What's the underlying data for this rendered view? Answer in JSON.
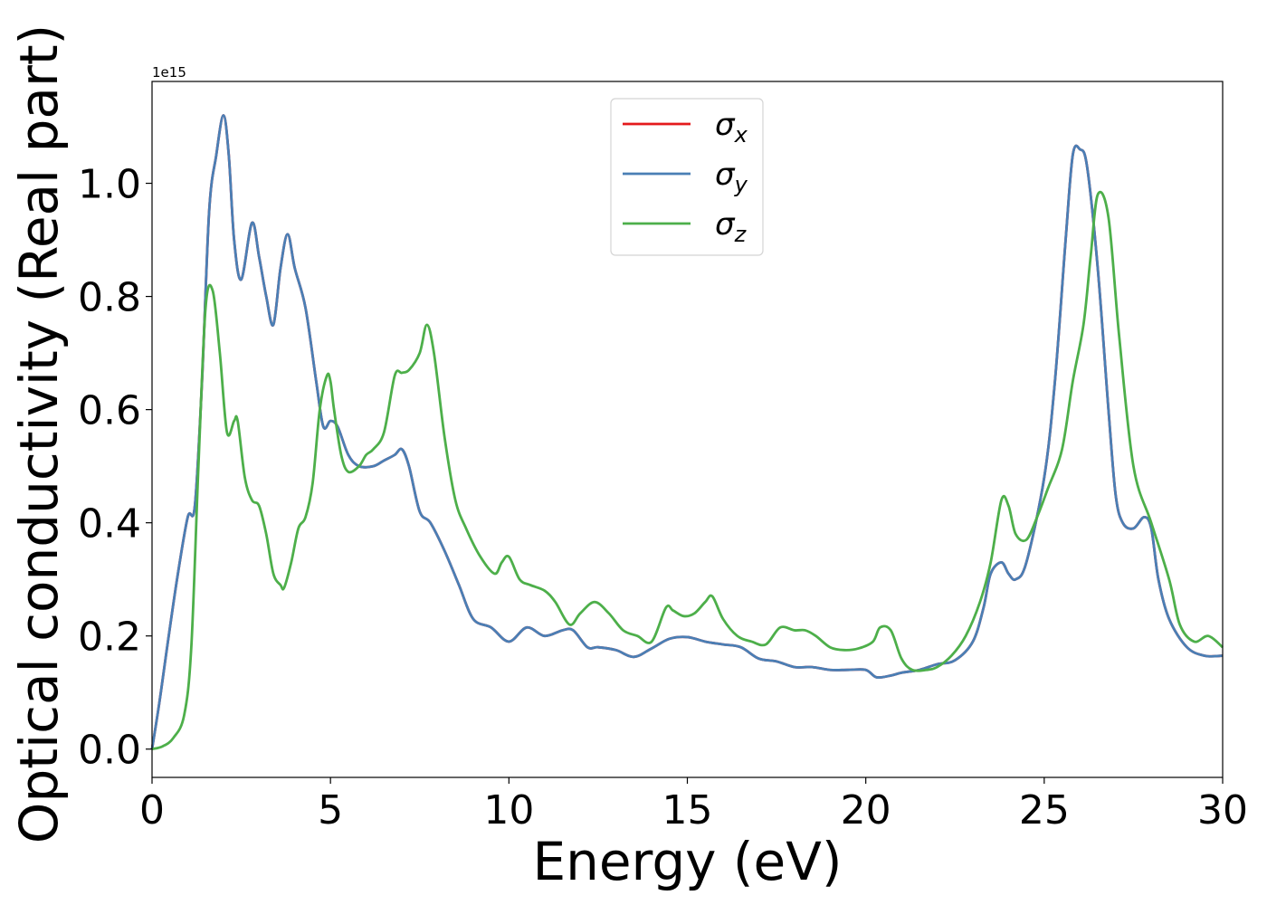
{
  "chart_data": {
    "type": "line",
    "title": "",
    "xlabel": "Energy (eV)",
    "ylabel": "Optical conductivity (Real part)",
    "y_offset_label": "1e15",
    "xlim": [
      0,
      30
    ],
    "ylim": [
      -0.05,
      1.18
    ],
    "xticks": [
      0,
      5,
      10,
      15,
      20,
      25,
      30
    ],
    "xtick_labels": [
      "0",
      "5",
      "10",
      "15",
      "20",
      "25",
      "30"
    ],
    "yticks": [
      0.0,
      0.2,
      0.4,
      0.6,
      0.8,
      1.0
    ],
    "ytick_labels": [
      "0.0",
      "0.2",
      "0.4",
      "0.6",
      "0.8",
      "1.0"
    ],
    "grid": false,
    "legend_position": "top-center",
    "series": [
      {
        "name": "σ_x",
        "legend_base": "σ",
        "legend_sub": "x",
        "color": "#e41a1c",
        "x": [
          0,
          0.2,
          0.4,
          0.7,
          1.0,
          1.2,
          1.4,
          1.6,
          1.8,
          2.0,
          2.15,
          2.3,
          2.5,
          2.8,
          3.0,
          3.2,
          3.4,
          3.6,
          3.8,
          4.0,
          4.3,
          4.6,
          4.8,
          5.0,
          5.2,
          5.5,
          5.8,
          6.2,
          6.5,
          6.8,
          7.0,
          7.2,
          7.5,
          7.8,
          8.2,
          8.6,
          9.0,
          9.5,
          10.0,
          10.5,
          11.0,
          11.5,
          11.8,
          12.2,
          12.5,
          13.0,
          13.5,
          14.0,
          14.5,
          15.0,
          15.5,
          16.0,
          16.5,
          17.0,
          17.5,
          18.0,
          18.5,
          19.0,
          19.5,
          20.0,
          20.3,
          20.7,
          21.0,
          21.5,
          22.0,
          22.5,
          23.0,
          23.3,
          23.5,
          23.8,
          24.0,
          24.2,
          24.5,
          25.0,
          25.3,
          25.6,
          25.8,
          26.0,
          26.2,
          26.5,
          26.8,
          27.0,
          27.2,
          27.5,
          27.8,
          28.0,
          28.2,
          28.5,
          29.0,
          29.5,
          30.0
        ],
        "values": [
          0.0,
          0.08,
          0.17,
          0.3,
          0.41,
          0.43,
          0.65,
          0.95,
          1.05,
          1.12,
          1.05,
          0.9,
          0.83,
          0.93,
          0.87,
          0.8,
          0.75,
          0.85,
          0.91,
          0.85,
          0.78,
          0.65,
          0.57,
          0.58,
          0.57,
          0.52,
          0.5,
          0.5,
          0.51,
          0.52,
          0.53,
          0.5,
          0.42,
          0.4,
          0.35,
          0.29,
          0.23,
          0.215,
          0.19,
          0.215,
          0.2,
          0.21,
          0.21,
          0.18,
          0.18,
          0.175,
          0.163,
          0.178,
          0.195,
          0.198,
          0.19,
          0.185,
          0.18,
          0.16,
          0.155,
          0.145,
          0.145,
          0.14,
          0.14,
          0.14,
          0.127,
          0.13,
          0.135,
          0.14,
          0.15,
          0.157,
          0.19,
          0.25,
          0.31,
          0.33,
          0.31,
          0.3,
          0.33,
          0.48,
          0.65,
          0.9,
          1.05,
          1.06,
          1.03,
          0.85,
          0.6,
          0.45,
          0.4,
          0.39,
          0.41,
          0.39,
          0.3,
          0.23,
          0.18,
          0.165,
          0.165
        ]
      },
      {
        "name": "σ_y",
        "legend_base": "σ",
        "legend_sub": "y",
        "color": "#4a7fb5",
        "x": [
          0,
          0.2,
          0.4,
          0.7,
          1.0,
          1.2,
          1.4,
          1.6,
          1.8,
          2.0,
          2.15,
          2.3,
          2.5,
          2.8,
          3.0,
          3.2,
          3.4,
          3.6,
          3.8,
          4.0,
          4.3,
          4.6,
          4.8,
          5.0,
          5.2,
          5.5,
          5.8,
          6.2,
          6.5,
          6.8,
          7.0,
          7.2,
          7.5,
          7.8,
          8.2,
          8.6,
          9.0,
          9.5,
          10.0,
          10.5,
          11.0,
          11.5,
          11.8,
          12.2,
          12.5,
          13.0,
          13.5,
          14.0,
          14.5,
          15.0,
          15.5,
          16.0,
          16.5,
          17.0,
          17.5,
          18.0,
          18.5,
          19.0,
          19.5,
          20.0,
          20.3,
          20.7,
          21.0,
          21.5,
          22.0,
          22.5,
          23.0,
          23.3,
          23.5,
          23.8,
          24.0,
          24.2,
          24.5,
          25.0,
          25.3,
          25.6,
          25.8,
          26.0,
          26.2,
          26.5,
          26.8,
          27.0,
          27.2,
          27.5,
          27.8,
          28.0,
          28.2,
          28.5,
          29.0,
          29.5,
          30.0
        ],
        "values": [
          0.0,
          0.08,
          0.17,
          0.3,
          0.41,
          0.43,
          0.65,
          0.95,
          1.05,
          1.12,
          1.05,
          0.9,
          0.83,
          0.93,
          0.87,
          0.8,
          0.75,
          0.85,
          0.91,
          0.85,
          0.78,
          0.65,
          0.57,
          0.58,
          0.57,
          0.52,
          0.5,
          0.5,
          0.51,
          0.52,
          0.53,
          0.5,
          0.42,
          0.4,
          0.35,
          0.29,
          0.23,
          0.215,
          0.19,
          0.215,
          0.2,
          0.21,
          0.21,
          0.18,
          0.18,
          0.175,
          0.163,
          0.178,
          0.195,
          0.198,
          0.19,
          0.185,
          0.18,
          0.16,
          0.155,
          0.145,
          0.145,
          0.14,
          0.14,
          0.14,
          0.127,
          0.13,
          0.135,
          0.14,
          0.15,
          0.157,
          0.19,
          0.25,
          0.31,
          0.33,
          0.31,
          0.3,
          0.33,
          0.48,
          0.65,
          0.9,
          1.05,
          1.06,
          1.03,
          0.85,
          0.6,
          0.45,
          0.4,
          0.39,
          0.41,
          0.39,
          0.3,
          0.23,
          0.18,
          0.165,
          0.165
        ]
      },
      {
        "name": "σ_z",
        "legend_base": "σ",
        "legend_sub": "z",
        "color": "#4daf4a",
        "x": [
          0,
          0.3,
          0.6,
          0.9,
          1.1,
          1.3,
          1.5,
          1.7,
          1.9,
          2.1,
          2.3,
          2.4,
          2.6,
          2.8,
          3.0,
          3.2,
          3.4,
          3.6,
          3.7,
          3.9,
          4.1,
          4.3,
          4.5,
          4.7,
          4.9,
          5.0,
          5.1,
          5.3,
          5.5,
          5.8,
          6.0,
          6.2,
          6.5,
          6.8,
          7.0,
          7.2,
          7.5,
          7.7,
          7.9,
          8.2,
          8.5,
          8.8,
          9.2,
          9.6,
          9.8,
          10.0,
          10.3,
          10.6,
          11.0,
          11.3,
          11.7,
          12.0,
          12.4,
          12.8,
          13.2,
          13.6,
          14.0,
          14.4,
          14.6,
          14.9,
          15.2,
          15.5,
          15.7,
          16.0,
          16.4,
          16.8,
          17.2,
          17.6,
          18.0,
          18.3,
          18.6,
          19.0,
          19.4,
          19.8,
          20.2,
          20.4,
          20.7,
          21.0,
          21.3,
          21.7,
          22.0,
          22.4,
          22.8,
          23.2,
          23.5,
          23.8,
          24.0,
          24.2,
          24.5,
          24.8,
          25.1,
          25.5,
          25.8,
          26.1,
          26.3,
          26.5,
          26.8,
          27.1,
          27.5,
          28.0,
          28.5,
          28.8,
          29.2,
          29.6,
          30.0
        ],
        "values": [
          0.0,
          0.005,
          0.02,
          0.06,
          0.18,
          0.5,
          0.78,
          0.81,
          0.7,
          0.56,
          0.58,
          0.58,
          0.48,
          0.44,
          0.43,
          0.38,
          0.31,
          0.29,
          0.285,
          0.33,
          0.39,
          0.41,
          0.47,
          0.6,
          0.66,
          0.65,
          0.6,
          0.52,
          0.49,
          0.5,
          0.52,
          0.53,
          0.56,
          0.66,
          0.665,
          0.67,
          0.7,
          0.75,
          0.7,
          0.55,
          0.44,
          0.39,
          0.34,
          0.31,
          0.33,
          0.34,
          0.3,
          0.29,
          0.28,
          0.26,
          0.22,
          0.24,
          0.26,
          0.24,
          0.21,
          0.2,
          0.19,
          0.25,
          0.245,
          0.235,
          0.24,
          0.26,
          0.27,
          0.23,
          0.2,
          0.19,
          0.185,
          0.215,
          0.21,
          0.21,
          0.2,
          0.18,
          0.175,
          0.178,
          0.19,
          0.215,
          0.21,
          0.16,
          0.14,
          0.14,
          0.145,
          0.165,
          0.2,
          0.26,
          0.33,
          0.44,
          0.43,
          0.38,
          0.37,
          0.41,
          0.46,
          0.53,
          0.65,
          0.75,
          0.87,
          0.98,
          0.94,
          0.73,
          0.5,
          0.4,
          0.3,
          0.22,
          0.19,
          0.2,
          0.18
        ]
      }
    ]
  }
}
